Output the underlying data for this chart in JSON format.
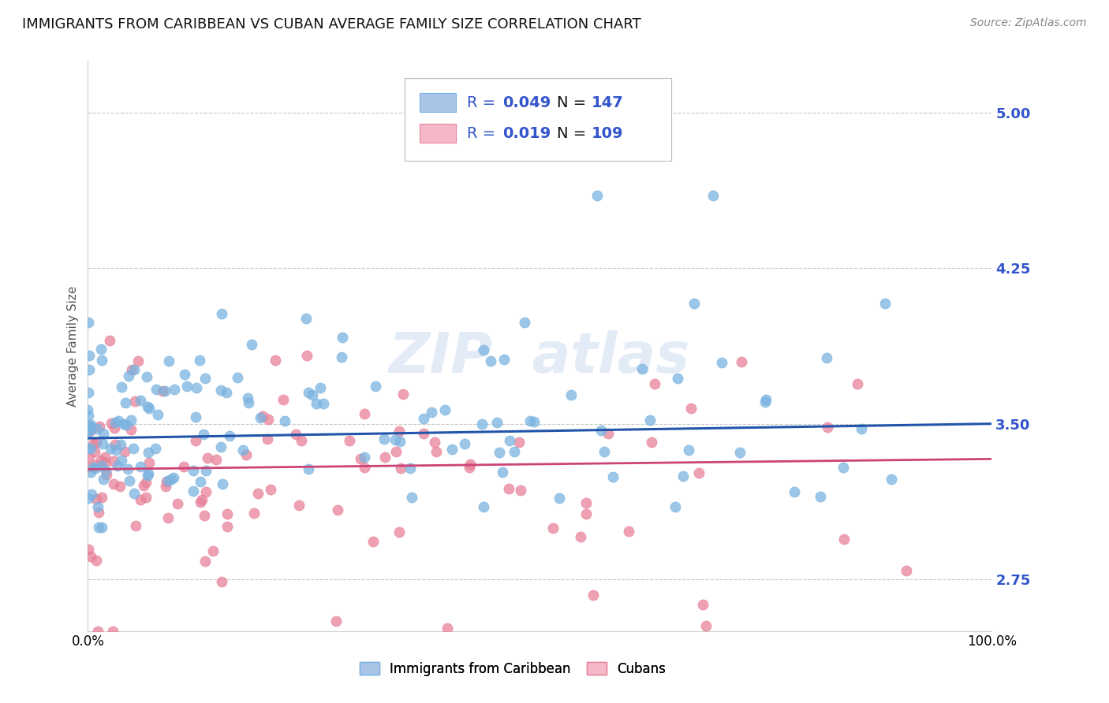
{
  "title": "IMMIGRANTS FROM CARIBBEAN VS CUBAN AVERAGE FAMILY SIZE CORRELATION CHART",
  "source": "Source: ZipAtlas.com",
  "ylabel": "Average Family Size",
  "xlim": [
    0.0,
    1.0
  ],
  "ylim": [
    2.5,
    5.25
  ],
  "yticks": [
    2.75,
    3.5,
    4.25,
    5.0
  ],
  "xticklabels": [
    "0.0%",
    "100.0%"
  ],
  "series1": {
    "label": "Immigrants from Caribbean",
    "dot_color": "#7ab3e0",
    "dot_edge": "#7ab3e0",
    "line_color": "#2255aa",
    "line_style": "solid",
    "R": 0.049,
    "N": 147,
    "icon_face": "#aac4e8",
    "icon_edge": "#7ab3e0"
  },
  "series2": {
    "label": "Cubans",
    "dot_color": "#e8829a",
    "dot_edge": "#e8829a",
    "line_color": "#cc4477",
    "line_style": "dashed",
    "R": 0.019,
    "N": 109,
    "icon_face": "#f4b8c8",
    "icon_edge": "#e8829a"
  },
  "legend_text_color": "#3355cc",
  "legend_N_label_color": "#000000",
  "legend_N_value_color": "#3355cc",
  "ytick_color": "#3355cc",
  "grid_color": "#bbbbbb",
  "grid_style": "--",
  "background_color": "#ffffff",
  "title_fontsize": 13,
  "source_fontsize": 10,
  "axis_label_fontsize": 11,
  "tick_fontsize": 12,
  "legend_fontsize": 14,
  "watermark": "ZIP atlas",
  "watermark_color": "#c8d8f0",
  "watermark_alpha": 0.5
}
